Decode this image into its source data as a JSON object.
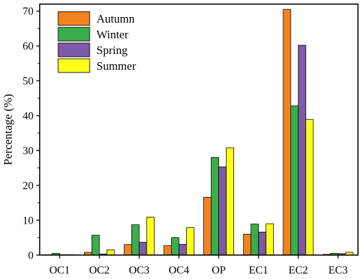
{
  "chart_data": {
    "type": "bar",
    "title": "",
    "xlabel": "",
    "ylabel": "Percentage (%)",
    "ylim": [
      0,
      72
    ],
    "yticks": [
      0,
      10,
      20,
      30,
      40,
      50,
      60,
      70
    ],
    "categories": [
      "OC1",
      "OC2",
      "OC3",
      "OC4",
      "OP",
      "EC1",
      "EC2",
      "EC3"
    ],
    "series": [
      {
        "name": "Autumn",
        "color": "#F58220",
        "values": [
          0.1,
          0.8,
          3.0,
          2.7,
          16.6,
          6.0,
          70.5,
          0.2
        ]
      },
      {
        "name": "Winter",
        "color": "#3AAE4A",
        "values": [
          0.5,
          5.7,
          8.7,
          5.0,
          28.0,
          8.9,
          42.8,
          0.5
        ]
      },
      {
        "name": "Spring",
        "color": "#7E5AA8",
        "values": [
          0.1,
          0.3,
          3.7,
          3.1,
          25.3,
          6.6,
          60.2,
          0.4
        ]
      },
      {
        "name": "Summer",
        "color": "#FFFF1A",
        "values": [
          0.1,
          1.5,
          10.9,
          7.9,
          30.8,
          9.0,
          38.9,
          0.8
        ]
      }
    ],
    "grid": false,
    "legend_position": "top-left"
  }
}
